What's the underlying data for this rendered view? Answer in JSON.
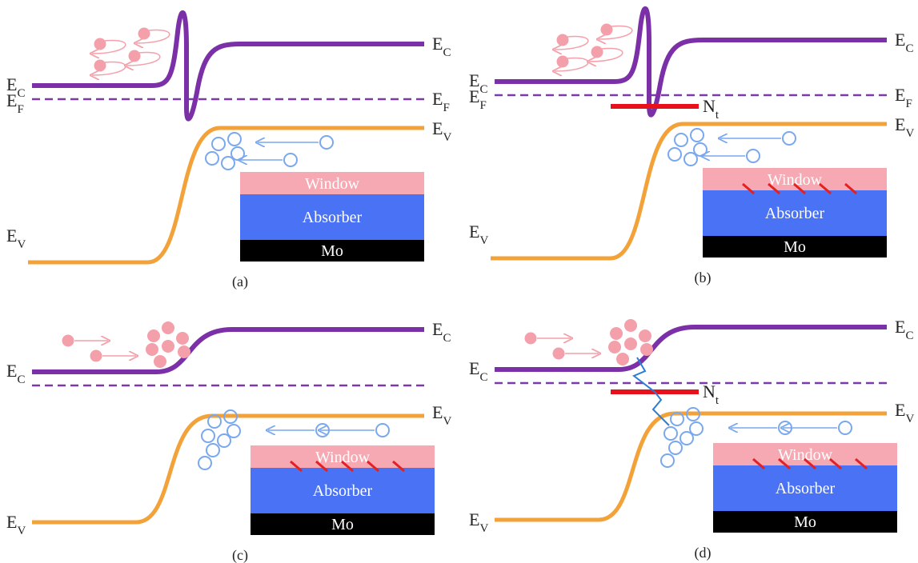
{
  "panels": [
    {
      "caption": "(a)",
      "ec_left": {
        "base": "E",
        "sub": "C"
      },
      "ef_left": {
        "base": "E",
        "sub": "F"
      },
      "ec_right": {
        "base": "E",
        "sub": "C"
      },
      "ef_right": {
        "base": "E",
        "sub": "F"
      },
      "ev_right": {
        "base": "E",
        "sub": "V"
      },
      "ev_left": {
        "base": "E",
        "sub": "V"
      },
      "stack": {
        "window": "Window",
        "absorber": "Absorber",
        "mo": "Mo"
      }
    },
    {
      "caption": "(b)",
      "ec_left": {
        "base": "E",
        "sub": "C"
      },
      "ef_left": {
        "base": "E",
        "sub": "F"
      },
      "ec_right": {
        "base": "E",
        "sub": "C"
      },
      "ef_right": {
        "base": "E",
        "sub": "F"
      },
      "nt": {
        "base": "N",
        "sub": "t"
      },
      "ev_right": {
        "base": "E",
        "sub": "V"
      },
      "ev_left": {
        "base": "E",
        "sub": "V"
      },
      "stack": {
        "window": "Window",
        "absorber": "Absorber",
        "mo": "Mo"
      }
    },
    {
      "caption": "(c)",
      "ec_left": {
        "base": "E",
        "sub": "C"
      },
      "ec_right": {
        "base": "E",
        "sub": "C"
      },
      "ev_right": {
        "base": "E",
        "sub": "V"
      },
      "ev_left": {
        "base": "E",
        "sub": "V"
      },
      "stack": {
        "window": "Window",
        "absorber": "Absorber",
        "mo": "Mo"
      }
    },
    {
      "caption": "(d)",
      "ec_left": {
        "base": "E",
        "sub": "C"
      },
      "ec_right": {
        "base": "E",
        "sub": "C"
      },
      "nt": {
        "base": "N",
        "sub": "t"
      },
      "ev_right": {
        "base": "E",
        "sub": "V"
      },
      "ev_left": {
        "base": "E",
        "sub": "V"
      },
      "stack": {
        "window": "Window",
        "absorber": "Absorber",
        "mo": "Mo"
      }
    }
  ]
}
